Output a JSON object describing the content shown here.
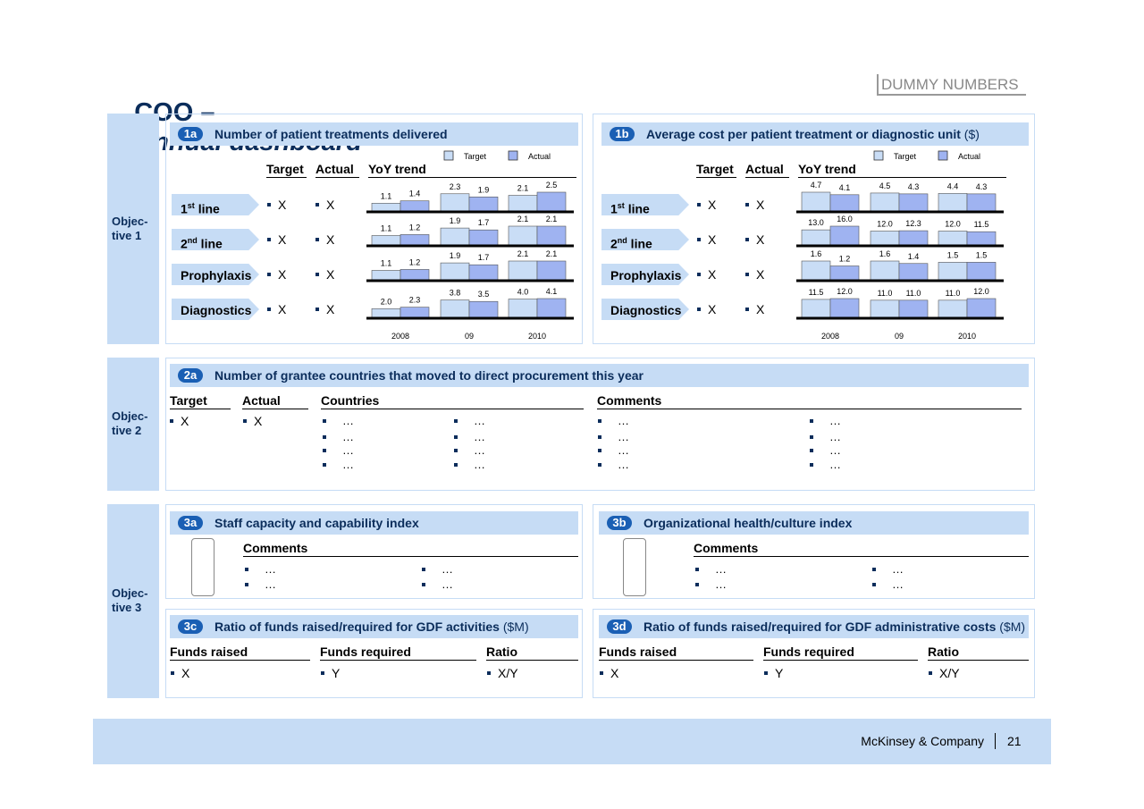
{
  "header": {
    "title": "COO –",
    "title_italic": "Annual dashboard",
    "stamp": "DUMMY NUMBERS"
  },
  "objectives": [
    [
      "Objec-",
      "tive 1"
    ],
    [
      "Objec-",
      "tive 2"
    ],
    [
      "Objec-",
      "tive 3"
    ]
  ],
  "kpi_panels": [
    {
      "badge": "1a",
      "title": "Number of patient treatments delivered",
      "legend": [
        {
          "name": "Target",
          "color": "#c9ddf6"
        },
        {
          "name": "Actual",
          "color": "#9fb3f1"
        }
      ],
      "columns": [
        "Target",
        "Actual",
        "YoY trend"
      ],
      "years": [
        "2008",
        "09",
        "2010"
      ],
      "rows": [
        {
          "label": {
            "main": "1",
            "sup": "st",
            "rest": " line"
          },
          "target": "X",
          "actual": "X",
          "trend": {
            "type": "bar",
            "target": [
              1.1,
              2.3,
              2.1
            ],
            "target_labels": [
              "1.1",
              "2.3",
              "2.1"
            ],
            "actual": [
              1.4,
              1.9,
              2.5
            ],
            "actual_labels": [
              "1.4",
              "1.9",
              "2.5"
            ]
          }
        },
        {
          "label": {
            "main": "2",
            "sup": "nd",
            "rest": " line"
          },
          "target": "X",
          "actual": "X",
          "trend": {
            "type": "bar",
            "target": [
              1.1,
              1.9,
              2.1
            ],
            "target_labels": [
              "1.1",
              "1.9",
              "2.1"
            ],
            "actual": [
              1.2,
              1.7,
              2.1
            ],
            "actual_labels": [
              "1.2",
              "1.7",
              "2.1"
            ]
          }
        },
        {
          "label": {
            "main": "Prophylaxis"
          },
          "target": "X",
          "actual": "X",
          "trend": {
            "type": "bar",
            "target": [
              1.1,
              1.9,
              2.1
            ],
            "target_labels": [
              "1.1",
              "1.9",
              "2.1"
            ],
            "actual": [
              1.2,
              1.7,
              2.1
            ],
            "actual_labels": [
              "1.2",
              "1.7",
              "2.1"
            ]
          }
        },
        {
          "label": {
            "main": "Diagnostics"
          },
          "target": "X",
          "actual": "X",
          "trend": {
            "type": "bar",
            "target": [
              2.0,
              3.8,
              4.0
            ],
            "target_labels": [
              "2.0",
              "3.8",
              "4.0"
            ],
            "actual": [
              2.3,
              3.5,
              4.1
            ],
            "actual_labels": [
              "2.3",
              "3.5",
              "4.1"
            ]
          }
        }
      ]
    },
    {
      "badge": "1b",
      "title": "Average cost per patient treatment or diagnostic unit",
      "unit": " ($)",
      "legend": [
        {
          "name": "Target",
          "color": "#c9ddf6"
        },
        {
          "name": "Actual",
          "color": "#9fb3f1"
        }
      ],
      "columns": [
        "Target",
        "Actual",
        "YoY trend"
      ],
      "years": [
        "2008",
        "09",
        "2010"
      ],
      "rows": [
        {
          "label": {
            "main": "1",
            "sup": "st",
            "rest": " line"
          },
          "target": "X",
          "actual": "X",
          "trend": {
            "type": "bar",
            "target": [
              4.7,
              4.5,
              4.4
            ],
            "target_labels": [
              "4.7",
              "4.5",
              "4.4"
            ],
            "actual": [
              4.1,
              4.3,
              4.3
            ],
            "actual_labels": [
              "4.1",
              "4.3",
              "4.3"
            ]
          }
        },
        {
          "label": {
            "main": "2",
            "sup": "nd",
            "rest": " line"
          },
          "target": "X",
          "actual": "X",
          "trend": {
            "type": "bar",
            "target": [
              13.0,
              12.0,
              12.0
            ],
            "target_labels": [
              "13.0",
              "12.0",
              "12.0"
            ],
            "actual": [
              16.0,
              12.3,
              11.5
            ],
            "actual_labels": [
              "16.0",
              "12.3",
              "11.5"
            ]
          }
        },
        {
          "label": {
            "main": "Prophylaxis"
          },
          "target": "X",
          "actual": "X",
          "trend": {
            "type": "bar",
            "target": [
              1.6,
              1.6,
              1.5
            ],
            "target_labels": [
              "1.6",
              "1.6",
              "1.5"
            ],
            "actual": [
              1.2,
              1.4,
              1.5
            ],
            "actual_labels": [
              "1.2",
              "1.4",
              "1.5"
            ]
          }
        },
        {
          "label": {
            "main": "Diagnostics"
          },
          "target": "X",
          "actual": "X",
          "trend": {
            "type": "bar",
            "target": [
              11.5,
              11.0,
              11.0
            ],
            "target_labels": [
              "11.5",
              "11.0",
              "11.0"
            ],
            "actual": [
              12.0,
              11.0,
              12.0
            ],
            "actual_labels": [
              "12.0",
              "11.0",
              "12.0"
            ]
          }
        }
      ]
    }
  ],
  "procurement": {
    "badge": "2a",
    "title": "Number of grantee countries that moved to direct procurement this year",
    "columns": [
      "Target",
      "Actual",
      "Countries",
      "Comments"
    ],
    "target": "X",
    "actual": "X",
    "countries": [
      [
        "…",
        "…",
        "…",
        "…"
      ],
      [
        "…",
        "…",
        "…",
        "…"
      ]
    ],
    "comments": [
      [
        "…",
        "…",
        "…",
        "…"
      ],
      [
        "…",
        "…",
        "…",
        "…"
      ]
    ]
  },
  "indices": [
    {
      "badge": "3a",
      "title": "Staff capacity and capability index",
      "light": "green",
      "comments_header": "Comments",
      "comments": [
        [
          "…",
          "…"
        ],
        [
          "…",
          "…"
        ]
      ]
    },
    {
      "badge": "3b",
      "title": "Organizational health/culture index",
      "light": "yellow",
      "comments_header": "Comments",
      "comments": [
        [
          "…",
          "…"
        ],
        [
          "…",
          "…"
        ]
      ]
    }
  ],
  "funds": [
    {
      "badge": "3c",
      "title": "Ratio of funds raised/required for GDF activities",
      "unit": " ($M)",
      "columns": [
        "Funds raised",
        "Funds required",
        "Ratio"
      ],
      "values": [
        "X",
        "Y",
        "X/Y"
      ]
    },
    {
      "badge": "3d",
      "title": "Ratio of funds raised/required for GDF administrative costs",
      "unit": " ($M)",
      "columns": [
        "Funds raised",
        "Funds required",
        "Ratio"
      ],
      "values": [
        "X",
        "Y",
        "X/Y"
      ]
    }
  ],
  "footer": {
    "company": "McKinsey & Company",
    "page": "21"
  }
}
